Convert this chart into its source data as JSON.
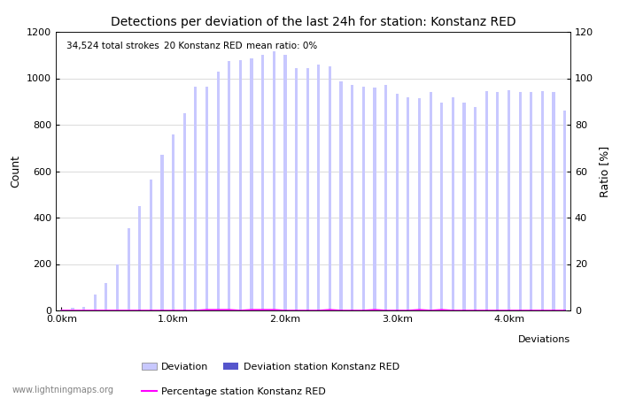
{
  "title": "Detections per deviation of the last 24h for station: Konstanz RED",
  "xlabel": "Deviations",
  "ylabel_left": "Count",
  "ylabel_right": "Ratio [%]",
  "annotation_parts": [
    "34,524 total strokes",
    "20 Konstanz RED",
    "mean ratio: 0%"
  ],
  "watermark": "www.lightningmaps.org",
  "ylim_left": [
    0,
    1200
  ],
  "ylim_right": [
    0,
    120
  ],
  "xtick_positions": [
    0,
    10,
    20,
    30,
    40
  ],
  "xtick_labels": [
    "0.0km",
    "1.0km",
    "2.0km",
    "3.0km",
    "4.0km"
  ],
  "ytick_left": [
    0,
    200,
    400,
    600,
    800,
    1000,
    1200
  ],
  "ytick_right": [
    0,
    20,
    40,
    60,
    80,
    100,
    120
  ],
  "bar_color_light": "#c8c8ff",
  "bar_color_dark": "#5555cc",
  "line_color": "#ff00ff",
  "bar_width": 0.25,
  "station_bar_width": 0.25,
  "deviation_counts": [
    5,
    10,
    15,
    70,
    120,
    200,
    355,
    450,
    565,
    670,
    760,
    850,
    965,
    965,
    1030,
    1075,
    1080,
    1085,
    1100,
    1115,
    1100,
    1045,
    1045,
    1060,
    1050,
    985,
    970,
    965,
    960,
    970,
    935,
    920,
    915,
    940,
    895,
    920,
    895,
    875,
    945,
    940,
    950,
    940,
    940,
    945,
    940,
    860
  ],
  "station_counts": [
    0,
    0,
    0,
    0,
    0,
    0,
    0,
    3,
    3,
    3,
    3,
    5,
    5,
    5,
    5,
    5,
    5,
    5,
    5,
    5,
    5,
    5,
    5,
    5,
    5,
    5,
    5,
    5,
    5,
    5,
    5,
    5,
    5,
    5,
    5,
    5,
    5,
    5,
    5,
    5,
    5,
    5,
    5,
    5,
    5,
    5
  ],
  "percentage_values": [
    0,
    0,
    0,
    0,
    0,
    0,
    0,
    0,
    0,
    0,
    0,
    0,
    0,
    0.3,
    0.3,
    0.3,
    0,
    0.3,
    0.3,
    0.3,
    0,
    0,
    0,
    0,
    0.3,
    0,
    0,
    0,
    0.3,
    0,
    0,
    0,
    0.3,
    0,
    0.3,
    0,
    0,
    0,
    0,
    0,
    0,
    0,
    0,
    0,
    0,
    0
  ],
  "n_bars": 46
}
